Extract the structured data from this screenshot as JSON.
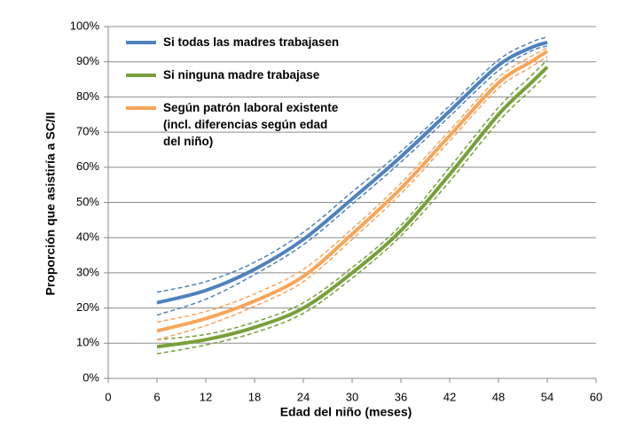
{
  "chart_data": {
    "type": "line",
    "x_label": "Edad del niño (meses)",
    "y_label": "Proporción que asistiría a SC/II",
    "x": [
      6,
      12,
      18,
      24,
      30,
      36,
      42,
      48,
      52,
      54
    ],
    "xlim": [
      0,
      60
    ],
    "xticks": [
      0,
      6,
      12,
      18,
      24,
      30,
      36,
      42,
      48,
      54,
      60
    ],
    "ylim": [
      0,
      100
    ],
    "yticks": [
      {
        "value": 0,
        "label": "0%"
      },
      {
        "value": 10,
        "label": "10%"
      },
      {
        "value": 20,
        "label": "20%"
      },
      {
        "value": 30,
        "label": "30%"
      },
      {
        "value": 40,
        "label": "40%"
      },
      {
        "value": 50,
        "label": "50%"
      },
      {
        "value": 60,
        "label": "60%"
      },
      {
        "value": 70,
        "label": "70%"
      },
      {
        "value": 80,
        "label": "80%"
      },
      {
        "value": 90,
        "label": "90%"
      },
      {
        "value": 100,
        "label": "100%"
      }
    ],
    "grid": true,
    "legend": "top-left",
    "series": [
      {
        "name": "Si todas las madres trabajasen",
        "color": "#4f81bd",
        "values": [
          21.5,
          25,
          31,
          39.5,
          51,
          63,
          76,
          89,
          94,
          95.5
        ],
        "lower": [
          18,
          22.5,
          29.5,
          38,
          49.5,
          61.5,
          74.5,
          87.5,
          93,
          94.5
        ],
        "upper": [
          24.5,
          27.5,
          33,
          41.5,
          53,
          64.5,
          77.5,
          90.5,
          95.5,
          97
        ]
      },
      {
        "name": "Si ninguna madre trabajase",
        "color": "#77a03c",
        "values": [
          9,
          11,
          14.5,
          20,
          30,
          42,
          58,
          75,
          84,
          88.5
        ],
        "lower": [
          7,
          9.5,
          13,
          18.5,
          28.5,
          40.5,
          56,
          73,
          82,
          86.5
        ],
        "upper": [
          11,
          12.5,
          16,
          21.5,
          31.5,
          43.5,
          60,
          77,
          86,
          90.5
        ]
      },
      {
        "name": "Según patrón laboral existente (incl. diferencias según edad del niño)",
        "color": "#f7a55a",
        "values": [
          13.5,
          17,
          22,
          29,
          41,
          54,
          69,
          84,
          90,
          93
        ],
        "lower": [
          11,
          15,
          20.5,
          27.5,
          39.5,
          52.5,
          67.5,
          82.5,
          88.5,
          91.5
        ],
        "upper": [
          16,
          19,
          24,
          31,
          42.5,
          55.5,
          70.5,
          85.5,
          91.5,
          94
        ]
      }
    ]
  }
}
